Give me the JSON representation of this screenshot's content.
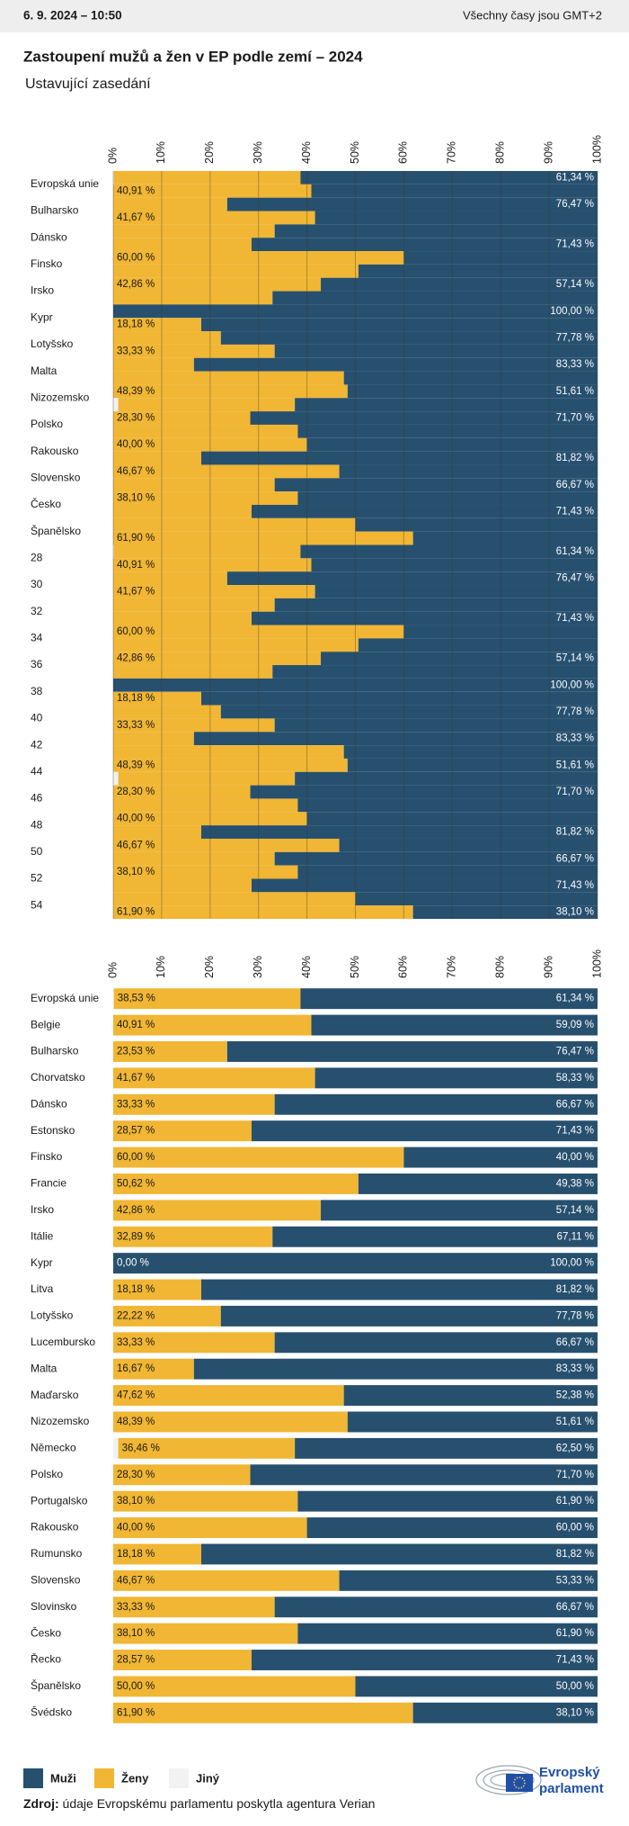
{
  "page": {
    "timestamp": "6. 9. 2024 – 10:50",
    "timezone_note": "Všechny časy jsou GMT+2",
    "title": "Zastoupení mužů a žen v EP podle zemí – 2024",
    "subtitle": "Ustavující zasedání",
    "source_label": "Zdroj:",
    "source_text": "údaje Evropskému parlamentu poskytla agentura Verian",
    "logo_text": [
      "Evropský",
      "parlament"
    ]
  },
  "chart_data": [
    {
      "type": "bar",
      "orientation": "horizontal",
      "stacked": true,
      "grid": true,
      "xlim": [
        0,
        100
      ],
      "xticks": [
        {
          "value": 0,
          "label": "0%"
        },
        {
          "value": 10,
          "label": "10%"
        },
        {
          "value": 20,
          "label": "20%"
        },
        {
          "value": 30,
          "label": "30%"
        },
        {
          "value": 40,
          "label": "40%"
        },
        {
          "value": 50,
          "label": "50%"
        },
        {
          "value": 60,
          "label": "60%"
        },
        {
          "value": 70,
          "label": "70%"
        },
        {
          "value": 80,
          "label": "80%"
        },
        {
          "value": 90,
          "label": "90%"
        },
        {
          "value": 100,
          "label": "100%"
        }
      ],
      "categories": [
        "Evropská unie",
        null,
        "Bulharsko",
        null,
        "Dánsko",
        null,
        "Finsko",
        null,
        "Irsko",
        null,
        "Kypr",
        null,
        "Lotyšsko",
        null,
        "Malta",
        null,
        "Nizozemsko",
        null,
        "Polsko",
        null,
        "Rakousko",
        null,
        "Slovensko",
        null,
        "Česko",
        null,
        "Španělsko",
        null,
        "28",
        null,
        "30",
        null,
        "32",
        null,
        "34",
        null,
        "36",
        null,
        "38",
        null,
        "40",
        null,
        "42",
        null,
        "44",
        null,
        "46",
        null,
        "48",
        null,
        "50",
        null,
        "52",
        null,
        "54",
        null
      ],
      "series": [
        {
          "name": "Muži",
          "color": "#27506f",
          "values": [
            61.34,
            59.09,
            76.47,
            58.33,
            66.67,
            71.43,
            40.0,
            49.38,
            57.14,
            67.11,
            100.0,
            81.82,
            77.78,
            66.67,
            83.33,
            52.38,
            51.61,
            62.5,
            71.7,
            61.9,
            60.0,
            81.82,
            53.33,
            66.67,
            61.9,
            71.43,
            50.0,
            38.1,
            61.34,
            59.09,
            76.47,
            58.33,
            66.67,
            71.43,
            40.0,
            49.38,
            57.14,
            67.11,
            100.0,
            81.82,
            77.78,
            66.67,
            83.33,
            52.38,
            51.61,
            62.5,
            71.7,
            61.9,
            60.0,
            81.82,
            53.33,
            66.67,
            61.9,
            71.43,
            50.0,
            38.1
          ],
          "value_labels": [
            "61,34 %",
            null,
            "76,47 %",
            null,
            null,
            "71,43 %",
            null,
            null,
            "57,14 %",
            null,
            "100,00 %",
            null,
            "77,78 %",
            null,
            "83,33 %",
            null,
            "51,61 %",
            null,
            "71,70 %",
            null,
            null,
            "81,82 %",
            null,
            "66,67 %",
            null,
            "71,43 %",
            null,
            null,
            "61,34 %",
            null,
            "76,47 %",
            null,
            null,
            "71,43 %",
            null,
            null,
            "57,14 %",
            null,
            "100,00 %",
            null,
            "77,78 %",
            null,
            "83,33 %",
            null,
            "51,61 %",
            null,
            "71,70 %",
            null,
            null,
            "81,82 %",
            null,
            "66,67 %",
            null,
            "71,43 %",
            null,
            "38,10 %"
          ]
        },
        {
          "name": "Ženy",
          "color": "#f0b634",
          "values": [
            38.53,
            40.91,
            23.53,
            41.67,
            33.33,
            28.57,
            60.0,
            50.62,
            42.86,
            32.89,
            0.0,
            18.18,
            22.22,
            33.33,
            16.67,
            47.62,
            48.39,
            36.46,
            28.3,
            38.1,
            40.0,
            18.18,
            46.67,
            33.33,
            38.1,
            28.57,
            50.0,
            61.9,
            38.53,
            40.91,
            23.53,
            41.67,
            33.33,
            28.57,
            60.0,
            50.62,
            42.86,
            32.89,
            0.0,
            18.18,
            22.22,
            33.33,
            16.67,
            47.62,
            48.39,
            36.46,
            28.3,
            38.1,
            40.0,
            18.18,
            46.67,
            33.33,
            38.1,
            28.57,
            50.0,
            61.9
          ],
          "value_labels": [
            null,
            "40,91 %",
            null,
            "41,67 %",
            null,
            null,
            "60,00 %",
            null,
            "42,86 %",
            null,
            null,
            "18,18 %",
            null,
            "33,33 %",
            null,
            null,
            "48,39 %",
            null,
            "28,30 %",
            null,
            "40,00 %",
            null,
            "46,67 %",
            null,
            "38,10 %",
            null,
            null,
            "61,90 %",
            null,
            "40,91 %",
            null,
            "41,67 %",
            null,
            null,
            "60,00 %",
            null,
            "42,86 %",
            null,
            null,
            "18,18 %",
            null,
            "33,33 %",
            null,
            null,
            "48,39 %",
            null,
            "28,30 %",
            null,
            "40,00 %",
            null,
            "46,67 %",
            null,
            "38,10 %",
            null,
            null,
            "61,90 %"
          ]
        },
        {
          "name": "Jiný",
          "color": "#f2f2f2",
          "values": [
            0.13,
            0,
            0,
            0,
            0,
            0,
            0,
            0,
            0,
            0,
            0,
            0,
            0,
            0,
            0,
            0,
            0,
            1.04,
            0,
            0,
            0,
            0,
            0,
            0,
            0,
            0,
            0,
            0,
            0.13,
            0,
            0,
            0,
            0,
            0,
            0,
            0,
            0,
            0,
            0,
            0,
            0,
            0,
            0,
            0,
            0,
            1.04,
            0,
            0,
            0,
            0,
            0,
            0,
            0,
            0,
            0,
            0
          ]
        }
      ]
    },
    {
      "type": "bar",
      "orientation": "horizontal",
      "stacked": true,
      "grid": false,
      "xlim": [
        0,
        100
      ],
      "xticks": [
        {
          "value": 0,
          "label": "0%"
        },
        {
          "value": 10,
          "label": "10%"
        },
        {
          "value": 20,
          "label": "20%"
        },
        {
          "value": 30,
          "label": "30%"
        },
        {
          "value": 40,
          "label": "40%"
        },
        {
          "value": 50,
          "label": "50%"
        },
        {
          "value": 60,
          "label": "60%"
        },
        {
          "value": 70,
          "label": "70%"
        },
        {
          "value": 80,
          "label": "80%"
        },
        {
          "value": 90,
          "label": "90%"
        },
        {
          "value": 100,
          "label": "100%"
        }
      ],
      "categories": [
        "Evropská unie",
        "Belgie",
        "Bulharsko",
        "Chorvatsko",
        "Dánsko",
        "Estonsko",
        "Finsko",
        "Francie",
        "Irsko",
        "Itálie",
        "Kypr",
        "Litva",
        "Lotyšsko",
        "Lucembursko",
        "Malta",
        "Maďarsko",
        "Nizozemsko",
        "Německo",
        "Polsko",
        "Portugalsko",
        "Rakousko",
        "Rumunsko",
        "Slovensko",
        "Slovinsko",
        "Česko",
        "Řecko",
        "Španělsko",
        "Švédsko"
      ],
      "series": [
        {
          "name": "Muži",
          "color": "#27506f",
          "values": [
            61.34,
            59.09,
            76.47,
            58.33,
            66.67,
            71.43,
            40.0,
            49.38,
            57.14,
            67.11,
            100.0,
            81.82,
            77.78,
            66.67,
            83.33,
            52.38,
            51.61,
            62.5,
            71.7,
            61.9,
            60.0,
            81.82,
            53.33,
            66.67,
            61.9,
            71.43,
            50.0,
            38.1
          ],
          "value_labels": [
            "61,34 %",
            "59,09 %",
            "76,47 %",
            "58,33 %",
            "66,67 %",
            "71,43 %",
            "40,00 %",
            "49,38 %",
            "57,14 %",
            "67,11 %",
            "100,00 %",
            "81,82 %",
            "77,78 %",
            "66,67 %",
            "83,33 %",
            "52,38 %",
            "51,61 %",
            "62,50 %",
            "71,70 %",
            "61,90 %",
            "60,00 %",
            "81,82 %",
            "53,33 %",
            "66,67 %",
            "61,90 %",
            "71,43 %",
            "50,00 %",
            "38,10 %"
          ]
        },
        {
          "name": "Ženy",
          "color": "#f0b634",
          "values": [
            38.53,
            40.91,
            23.53,
            41.67,
            33.33,
            28.57,
            60.0,
            50.62,
            42.86,
            32.89,
            0.0,
            18.18,
            22.22,
            33.33,
            16.67,
            47.62,
            48.39,
            36.46,
            28.3,
            38.1,
            40.0,
            18.18,
            46.67,
            33.33,
            38.1,
            28.57,
            50.0,
            61.9
          ],
          "value_labels": [
            "38,53 %",
            "40,91 %",
            "23,53 %",
            "41,67 %",
            "33,33 %",
            "28,57 %",
            "60,00 %",
            "50,62 %",
            "42,86 %",
            "32,89 %",
            "0,00 %",
            "18,18 %",
            "22,22 %",
            "33,33 %",
            "16,67 %",
            "47,62 %",
            "48,39 %",
            "36,46 %",
            "28,30 %",
            "38,10 %",
            "40,00 %",
            "18,18 %",
            "46,67 %",
            "33,33 %",
            "38,10 %",
            "28,57 %",
            "50,00 %",
            "61,90 %"
          ]
        },
        {
          "name": "Jiný",
          "color": "#f2f2f2",
          "values": [
            0.13,
            0,
            0,
            0,
            0,
            0,
            0,
            0,
            0,
            0,
            0,
            0,
            0,
            0,
            0,
            0,
            0,
            1.04,
            0,
            0,
            0,
            0,
            0,
            0,
            0,
            0,
            0,
            0
          ]
        }
      ]
    }
  ]
}
